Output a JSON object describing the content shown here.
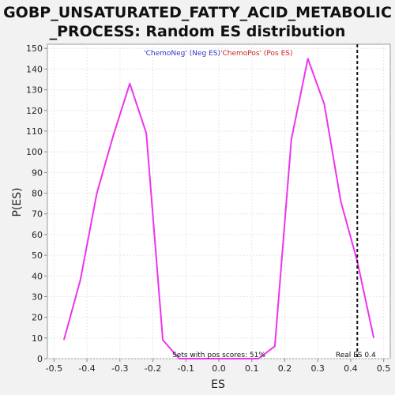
{
  "chart_data": {
    "type": "line",
    "title": "GOBP_UNSATURATED_FATTY_ACID_METABOLIC_PROCESS: Random ES distribution",
    "title_lines": [
      "GOBP_UNSATURATED_FATTY_ACID_METABOLIC",
      "_PROCESS: Random ES distribution"
    ],
    "xlabel": "ES",
    "ylabel": "P(ES)",
    "xlim": [
      -0.52,
      0.52
    ],
    "ylim": [
      0,
      152
    ],
    "xticks": [
      -0.5,
      -0.4,
      -0.3,
      -0.2,
      -0.1,
      0.0,
      0.1,
      0.2,
      0.3,
      0.4,
      0.5
    ],
    "xtick_labels": [
      "-0.5",
      "-0.4",
      "-0.3",
      "-0.2",
      "-0.1",
      "0.0",
      "0.1",
      "0.2",
      "0.3",
      "0.4",
      "0.5"
    ],
    "yticks": [
      0,
      10,
      20,
      30,
      40,
      50,
      60,
      70,
      80,
      90,
      100,
      110,
      120,
      130,
      140,
      150
    ],
    "grid": true,
    "legend": {
      "placement": "top-center",
      "entries": [
        {
          "text": "'ChemoNeg' (Neg ES)",
          "color": "#3333cc"
        },
        {
          "text": "'ChemoPos' (Pos ES)",
          "color": "#cc2222"
        }
      ]
    },
    "series": [
      {
        "color": "#ee33ee",
        "x": [
          -0.47,
          -0.42,
          -0.37,
          -0.32,
          -0.27,
          -0.22,
          -0.17,
          -0.12,
          -0.07,
          -0.02,
          0.03,
          0.08,
          0.12,
          0.17,
          0.22,
          0.27,
          0.32,
          0.37,
          0.42,
          0.47
        ],
        "y": [
          9,
          38,
          80,
          108,
          133,
          109,
          9,
          0,
          0,
          0,
          0,
          0,
          0,
          6,
          106,
          145,
          123,
          76,
          47,
          10
        ]
      }
    ],
    "real_es": {
      "x": 0.42,
      "label": "Real ES 0.4"
    },
    "annotation": "Sets with pos scores: 51%"
  },
  "colors": {
    "background": "#f2f2f2",
    "plot_background": "#ffffff",
    "grid": "#e6e6e6",
    "axis": "#888888",
    "text": "#222222"
  }
}
